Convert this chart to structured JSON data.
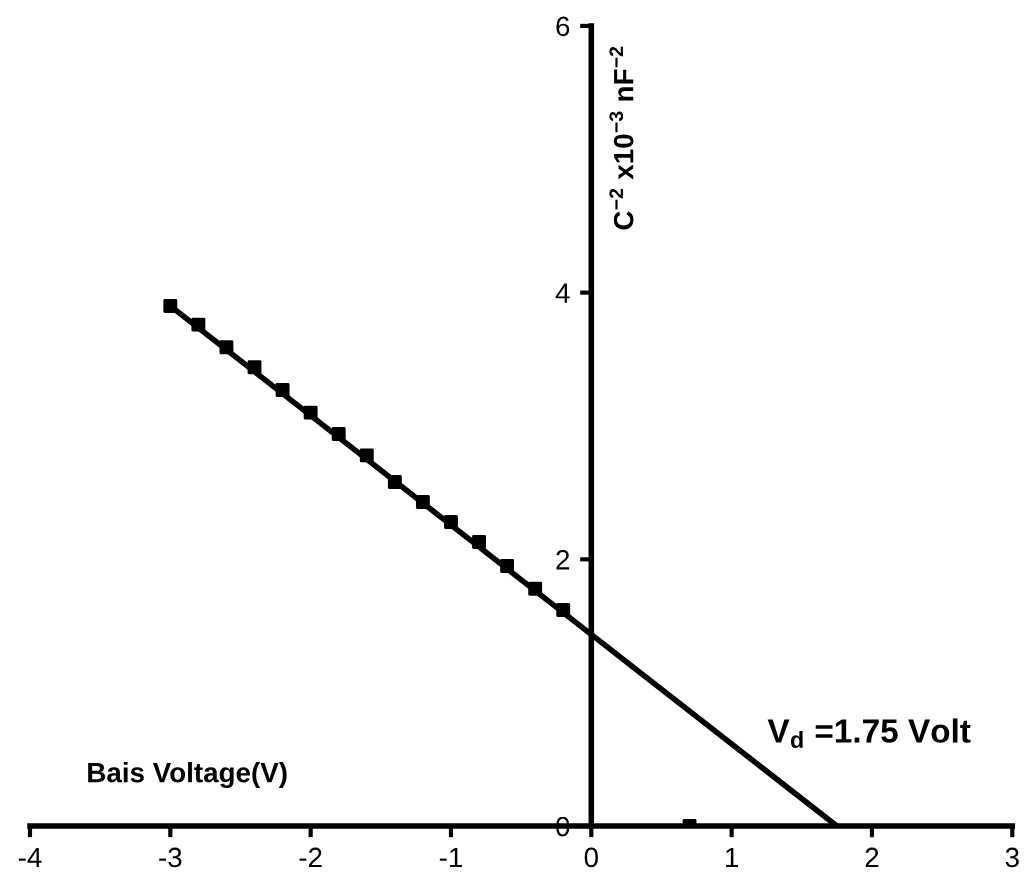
{
  "chart_data": {
    "type": "scatter",
    "xlabel": "Bais Voltage(V)",
    "ylabel": "C$^{−2}$ x10$^{−3}$ nF$^{−2}$",
    "xlim": [
      -4,
      3
    ],
    "ylim": [
      0,
      6
    ],
    "xticks": [
      -4,
      -3,
      -2,
      -1,
      0,
      1,
      2,
      3
    ],
    "yticks": [
      0,
      2,
      4,
      6
    ],
    "grid": false,
    "legend": false,
    "marker": "square",
    "series": [
      {
        "color": "#000000",
        "x": [
          -3.0,
          -2.8,
          -2.6,
          -2.4,
          -2.2,
          -2.0,
          -1.8,
          -1.6,
          -1.4,
          -1.2,
          -1.0,
          -0.8,
          -0.6,
          -0.4,
          -0.2,
          0.7
        ],
        "values": [
          3.9,
          3.76,
          3.59,
          3.44,
          3.27,
          3.1,
          2.94,
          2.78,
          2.58,
          2.43,
          2.28,
          2.13,
          1.95,
          1.78,
          1.62,
          0.0
        ]
      },
      {
        "type": "line",
        "color": "#000000",
        "marker": "none",
        "x": [
          -3.0,
          1.75
        ],
        "values": [
          3.9,
          0.0
        ]
      }
    ],
    "annotations": [
      {
        "text": "V$_{d}$ =1.75 Volt",
        "x": 1.75,
        "y": 0
      }
    ]
  }
}
